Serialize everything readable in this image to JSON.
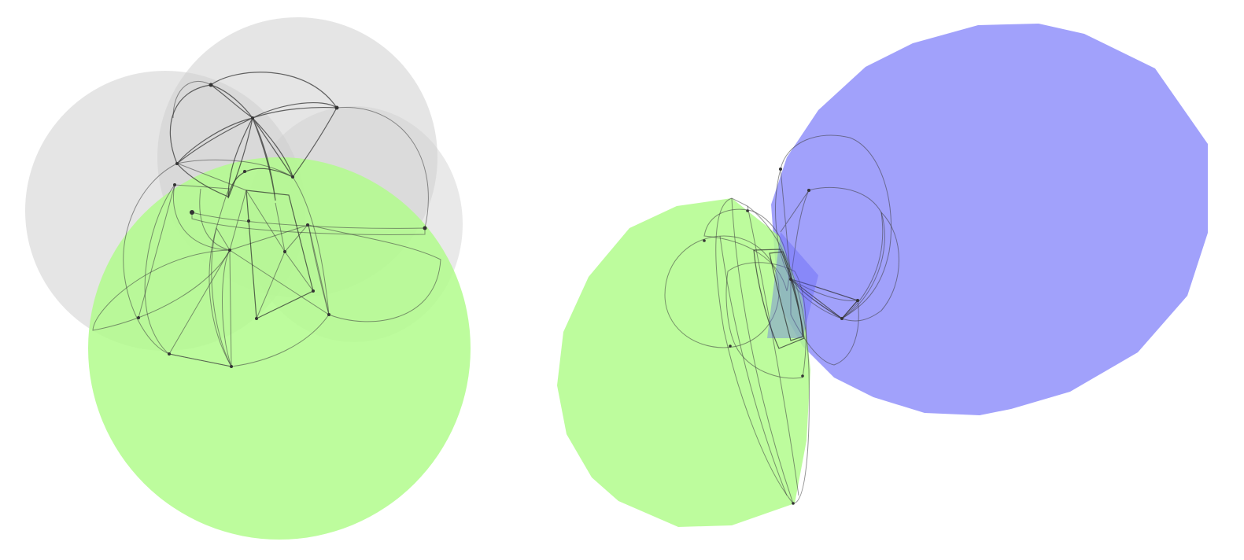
{
  "scene": {
    "views": [
      "left-view",
      "right-view"
    ],
    "colors": {
      "background": "#ffffff",
      "gray": "#cfcfcf",
      "green": "#b2fb8c",
      "green_strong": "#8cf53c",
      "red": "#e03232",
      "red_strong": "#ff1a1a",
      "brown": "#b07a3c",
      "orange": "#d2691e",
      "blue": "#5a5af5",
      "blue_light": "#8a8afa",
      "blue_strong": "#2020ff"
    }
  }
}
